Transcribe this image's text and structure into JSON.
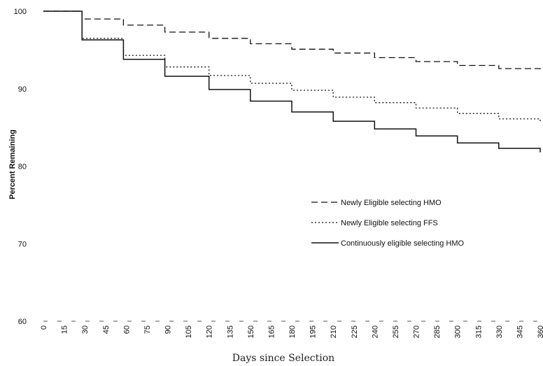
{
  "chart_data": {
    "type": "line",
    "title": "",
    "xlabel": "Days since Selection",
    "ylabel": "Percent Remaining",
    "xlim": [
      0,
      360
    ],
    "ylim": [
      60,
      100
    ],
    "x_ticks": [
      "0",
      "15",
      "30",
      "45",
      "60",
      "75",
      "90",
      "105",
      "120",
      "135",
      "150",
      "165",
      "180",
      "195",
      "210",
      "225",
      "240",
      "255",
      "270",
      "285",
      "300",
      "315",
      "330",
      "345",
      "360"
    ],
    "y_ticks": [
      "60",
      "70",
      "80",
      "90",
      "100"
    ],
    "grid": false,
    "legend_position": "right",
    "series": [
      {
        "name": "Newly Eligible selecting HMO",
        "style": "dashed",
        "color": "#111111",
        "x": [
          0,
          28,
          58,
          88,
          120,
          150,
          180,
          210,
          240,
          270,
          300,
          330,
          360
        ],
        "y": [
          100,
          99.0,
          98.2,
          97.3,
          96.5,
          95.8,
          95.1,
          94.6,
          94.0,
          93.5,
          93.0,
          92.6,
          92.3
        ]
      },
      {
        "name": "Newly Eligible selecting FFS",
        "style": "dotted",
        "color": "#111111",
        "x": [
          0,
          28,
          58,
          88,
          120,
          150,
          180,
          210,
          240,
          270,
          300,
          330,
          360
        ],
        "y": [
          100,
          96.5,
          94.3,
          92.8,
          91.7,
          90.7,
          89.8,
          88.9,
          88.2,
          87.5,
          86.8,
          86.1,
          85.7
        ]
      },
      {
        "name": "Continuously eligible selecting HMO",
        "style": "solid",
        "color": "#111111",
        "x": [
          0,
          28,
          58,
          88,
          120,
          150,
          180,
          210,
          240,
          270,
          300,
          330,
          360
        ],
        "y": [
          100,
          96.3,
          93.8,
          91.6,
          89.9,
          88.4,
          87.0,
          85.8,
          84.8,
          83.9,
          83.0,
          82.3,
          81.8
        ]
      }
    ]
  }
}
